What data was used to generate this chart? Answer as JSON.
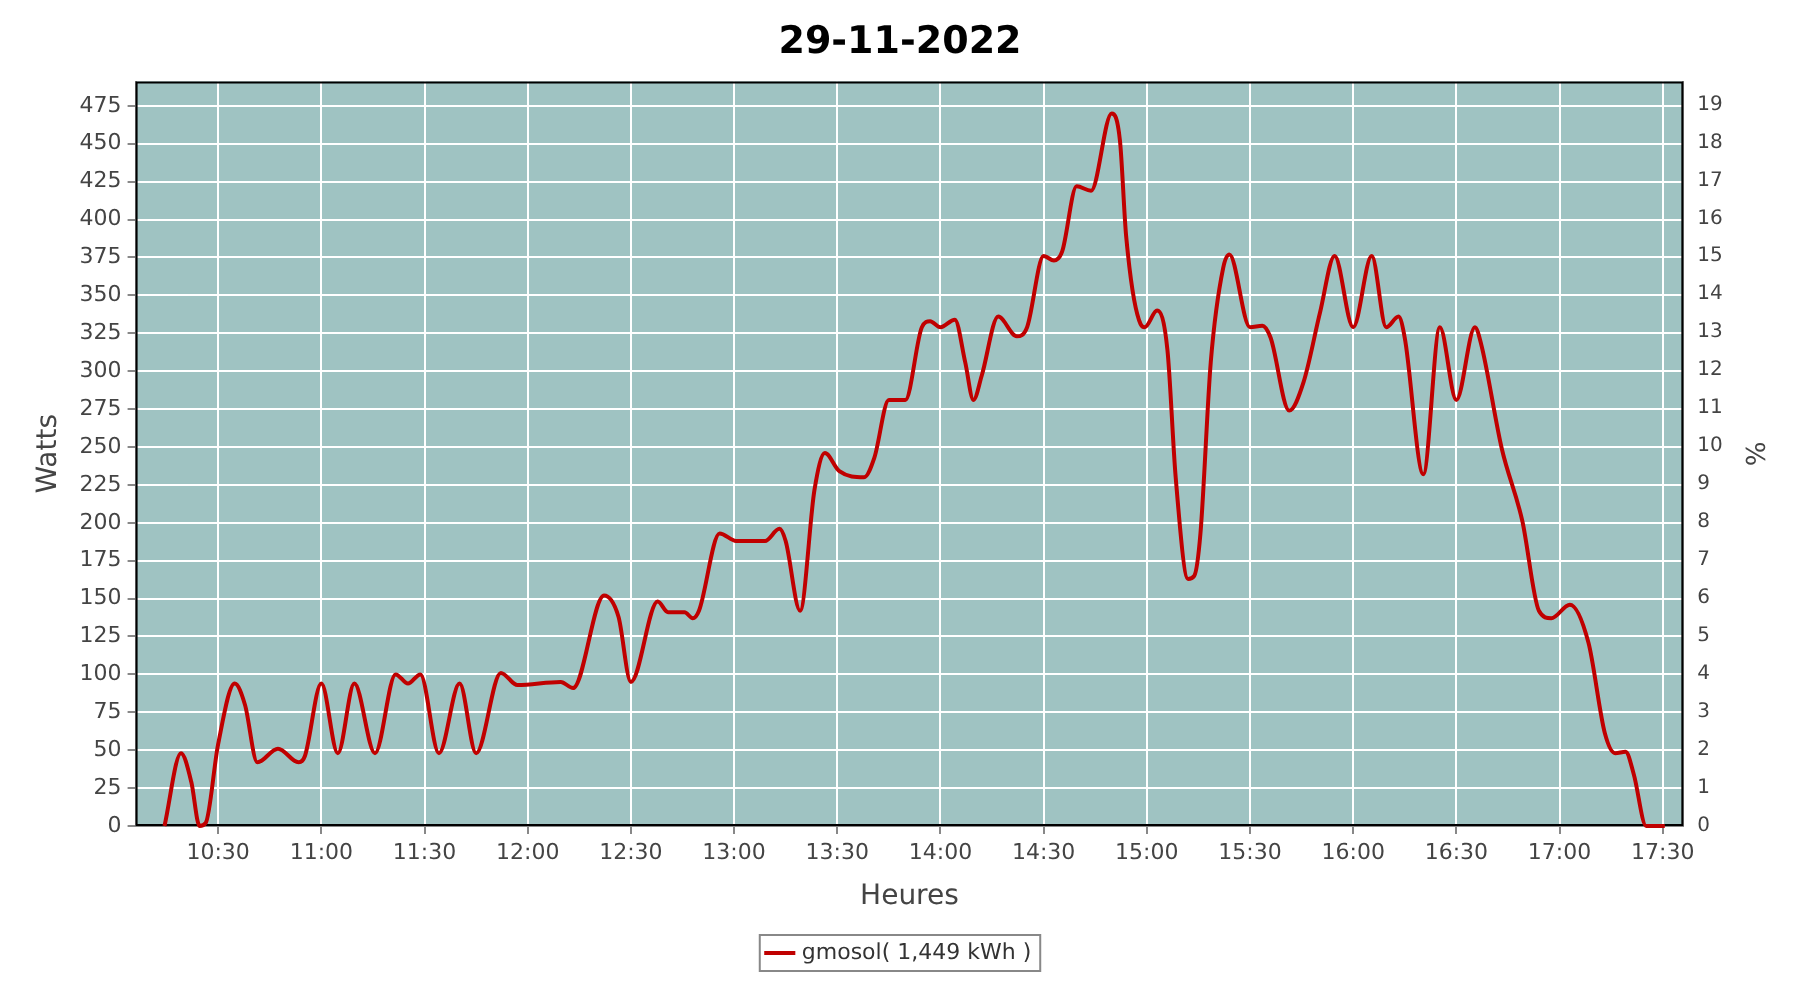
{
  "chart_data": {
    "type": "line",
    "title": "29-11-2022",
    "xlabel": "Heures",
    "ylabel": "Watts",
    "y2label": "%",
    "xlim": [
      10.1,
      17.6
    ],
    "xticks": [
      {
        "value": 10.5,
        "label": "10:30"
      },
      {
        "value": 11,
        "label": "11:00"
      },
      {
        "value": 11.5,
        "label": "11:30"
      },
      {
        "value": 12,
        "label": "12:00"
      },
      {
        "value": 12.5,
        "label": "12:30"
      },
      {
        "value": 13,
        "label": "13:00"
      },
      {
        "value": 13.5,
        "label": "13:30"
      },
      {
        "value": 14,
        "label": "14:00"
      },
      {
        "value": 14.5,
        "label": "14:30"
      },
      {
        "value": 15,
        "label": "15:00"
      },
      {
        "value": 15.5,
        "label": "15:30"
      },
      {
        "value": 16,
        "label": "16:00"
      },
      {
        "value": 16.5,
        "label": "16:30"
      },
      {
        "value": 17,
        "label": "17:00"
      },
      {
        "value": 17.5,
        "label": "17:30"
      }
    ],
    "ylim": [
      0,
      491
    ],
    "yticks": [
      0,
      25,
      50,
      75,
      100,
      125,
      150,
      175,
      200,
      225,
      250,
      275,
      300,
      325,
      350,
      375,
      400,
      425,
      450,
      475
    ],
    "y2lim": [
      0,
      19.6
    ],
    "y2ticks": [
      0,
      1,
      2,
      3,
      4,
      5,
      6,
      7,
      8,
      9,
      10,
      11,
      12,
      13,
      14,
      15,
      16,
      17,
      18,
      19
    ],
    "grid": true,
    "legend": "bottom",
    "marker": "none",
    "series": [
      {
        "name": "gmosol( 1,449 kWh )",
        "color": "#c00000",
        "x": [
          10.24,
          10.32,
          10.37,
          10.41,
          10.44,
          10.5,
          10.58,
          10.63,
          10.69,
          10.79,
          10.89,
          10.92,
          11.0,
          11.08,
          11.16,
          11.26,
          11.36,
          11.42,
          11.48,
          11.57,
          11.67,
          11.75,
          11.87,
          11.95,
          12.16,
          12.22,
          12.37,
          12.44,
          12.5,
          12.63,
          12.68,
          12.76,
          12.8,
          12.83,
          12.93,
          13.01,
          13.15,
          13.22,
          13.25,
          13.32,
          13.39,
          13.44,
          13.51,
          13.63,
          13.68,
          13.75,
          13.83,
          13.91,
          13.95,
          14.0,
          14.07,
          14.12,
          14.16,
          14.2,
          14.28,
          14.37,
          14.42,
          14.5,
          14.55,
          14.59,
          14.66,
          14.73,
          14.83,
          14.87,
          14.9,
          14.97,
          14.99,
          15.05,
          15.1,
          15.14,
          15.2,
          15.23,
          15.26,
          15.31,
          15.37,
          15.4,
          15.5,
          15.56,
          15.6,
          15.69,
          15.76,
          15.84,
          15.91,
          16.0,
          16.09,
          16.16,
          16.22,
          16.25,
          16.34,
          16.42,
          16.5,
          16.59,
          16.62,
          16.72,
          16.82,
          16.9,
          16.96,
          17.05,
          17.14,
          17.22,
          17.27,
          17.32,
          17.36,
          17.42,
          17.51
        ],
        "values": [
          0,
          48,
          29,
          0,
          2,
          54,
          94,
          80,
          42,
          51,
          42,
          46,
          94,
          48,
          94,
          48,
          100,
          94,
          100,
          48,
          94,
          48,
          101,
          93,
          95,
          91,
          152,
          138,
          95,
          148,
          141,
          141,
          137,
          142,
          193,
          188,
          188,
          196,
          188,
          142,
          222,
          246,
          234,
          230,
          243,
          281,
          281,
          329,
          333,
          329,
          334,
          306,
          281,
          297,
          336,
          323,
          329,
          376,
          373,
          379,
          422,
          419,
          470,
          452,
          389,
          331,
          329,
          340,
          314,
          230,
          163,
          165,
          193,
          306,
          368,
          377,
          329,
          330,
          322,
          274,
          293,
          339,
          376,
          329,
          376,
          329,
          336,
          322,
          232,
          329,
          281,
          329,
          318,
          249,
          201,
          142,
          137,
          146,
          121,
          61,
          48,
          49,
          34,
          0,
          0
        ]
      }
    ]
  }
}
